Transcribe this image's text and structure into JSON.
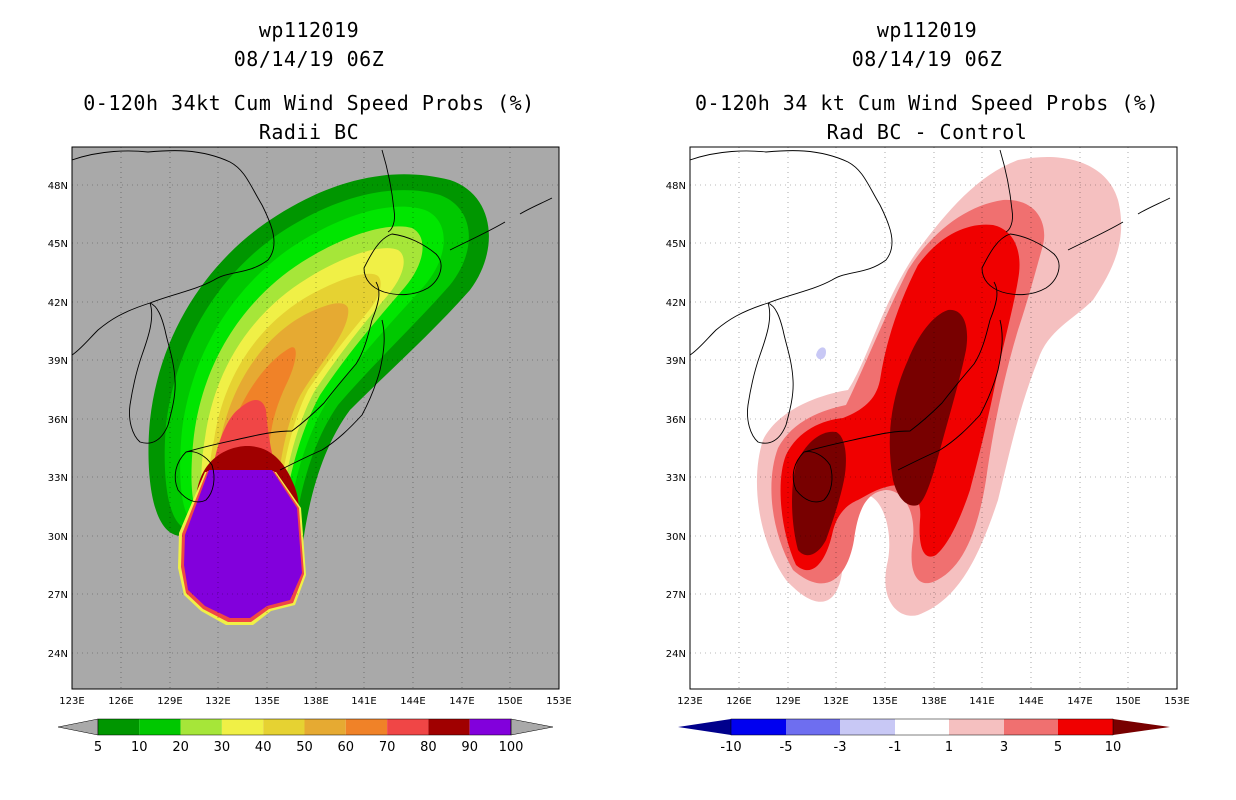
{
  "panels": [
    {
      "id": "left",
      "title_line1": "wp112019",
      "title_line2": "08/14/19 06Z",
      "title_line3": "0-120h 34kt Cum Wind Speed Probs (%)",
      "title_line4": "Radii BC",
      "background_color": "#a9a9a9",
      "colorbar": {
        "labels": [
          "5",
          "10",
          "20",
          "30",
          "40",
          "50",
          "60",
          "70",
          "80",
          "90",
          "100"
        ],
        "colors": [
          "#009600",
          "#00c800",
          "#00e600",
          "#a6e639",
          "#f0f046",
          "#e6d232",
          "#e6aa32",
          "#f08228",
          "#f04646",
          "#a00000",
          "#8200dc"
        ]
      }
    },
    {
      "id": "right",
      "title_line1": "wp112019",
      "title_line2": "08/14/19 06Z",
      "title_line3": "0-120h 34 kt Cum Wind Speed Probs (%)",
      "title_line4": "Rad BC - Control",
      "background_color": "#ffffff",
      "colorbar": {
        "labels": [
          "-10",
          "-5",
          "-3",
          "-1",
          "1",
          "3",
          "5",
          "10"
        ],
        "colors": [
          "#00008c",
          "#0000f0",
          "#6e6ef0",
          "#c8c8f5",
          "#ffffff",
          "#f5c0c0",
          "#f07070",
          "#f00000",
          "#780000"
        ]
      }
    }
  ],
  "axes": {
    "lat_labels": [
      "48N",
      "45N",
      "42N",
      "39N",
      "36N",
      "33N",
      "30N",
      "27N",
      "24N"
    ],
    "lon_labels": [
      "123E",
      "126E",
      "129E",
      "132E",
      "135E",
      "138E",
      "141E",
      "144E",
      "147E",
      "150E",
      "153E"
    ]
  }
}
